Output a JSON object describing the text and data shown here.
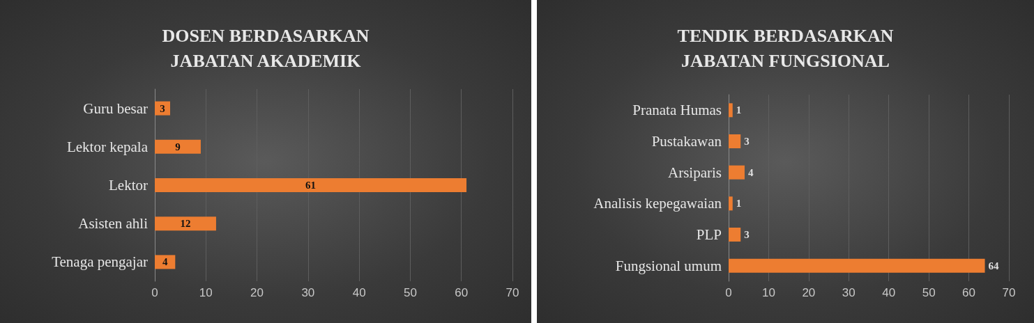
{
  "chart_data": [
    {
      "type": "bar",
      "orientation": "horizontal",
      "title": "DOSEN BERDASARKAN\nJABATAN AKADEMIK",
      "categories": [
        "Guru besar",
        "Lektor kepala",
        "Lektor",
        "Asisten ahli",
        "Tenaga pengajar"
      ],
      "values": [
        3,
        9,
        61,
        12,
        4
      ],
      "color": "#ed7d31",
      "xlim": [
        0,
        70
      ],
      "xticks": [
        0,
        10,
        20,
        30,
        40,
        50,
        60,
        70
      ],
      "grid": "x",
      "data_labels": true
    },
    {
      "type": "bar",
      "orientation": "horizontal",
      "title": "TENDIK BERDASARKAN\nJABATAN FUNGSIONAL",
      "categories": [
        "Pranata Humas",
        "Pustakawan",
        "Arsiparis",
        "Analisis kepegawaian",
        "PLP",
        "Fungsional umum"
      ],
      "values": [
        1,
        3,
        4,
        1,
        3,
        64
      ],
      "color": "#ed7d31",
      "xlim": [
        0,
        70
      ],
      "xticks": [
        0,
        10,
        20,
        30,
        40,
        50,
        60,
        70
      ],
      "grid": "x",
      "data_labels": true
    }
  ]
}
